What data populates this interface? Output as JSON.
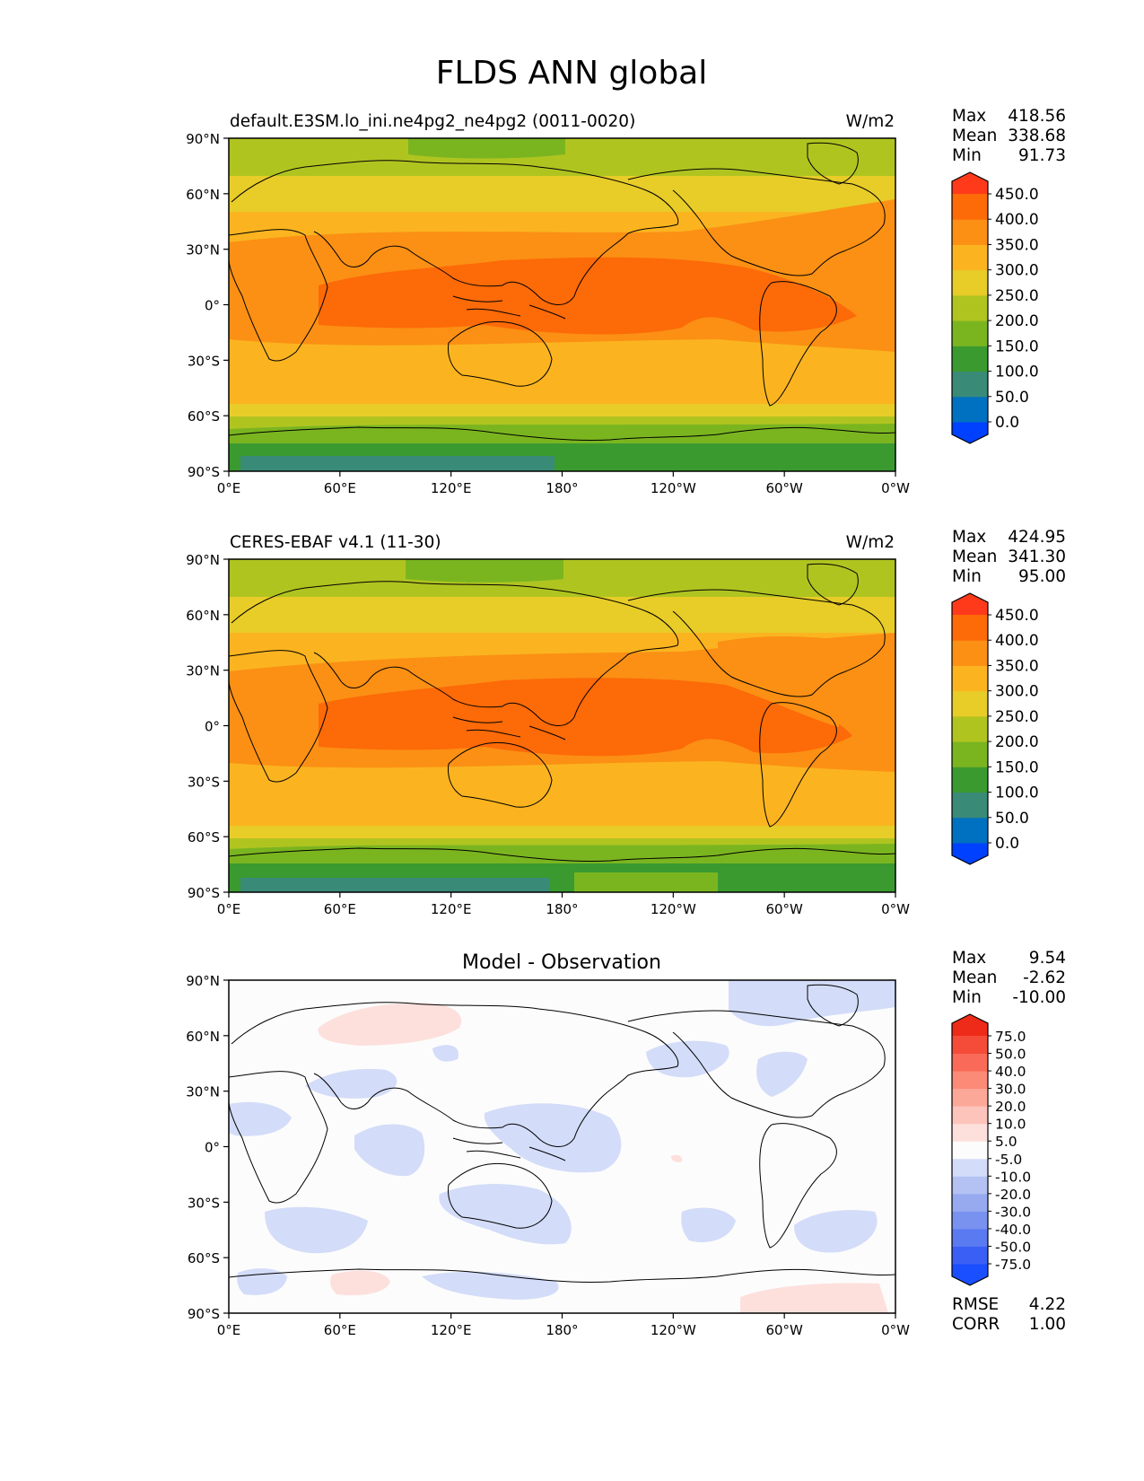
{
  "figure": {
    "title": "FLDS ANN global"
  },
  "colormaps": {
    "abs": [
      "#0040ff",
      "#0070c0",
      "#3a8a78",
      "#3a9a30",
      "#7ab520",
      "#b0c420",
      "#e8cc28",
      "#fbb420",
      "#fb9014",
      "#fd6a08",
      "#ff3a1a"
    ],
    "diff": [
      "#1a4fff",
      "#3a5ff5",
      "#5a7af2",
      "#7a92ef",
      "#97aaf0",
      "#b3c2f3",
      "#d3dcf8",
      "#fcfcfc",
      "#fde0dc",
      "#fdc4bc",
      "#fca898",
      "#fb8a76",
      "#f96b58",
      "#f54c3a",
      "#ee2a18"
    ]
  },
  "panels": [
    {
      "title_left": "default.E3SM.lo_ini.ne4pg2_ne4pg2 (0011-0020)",
      "title_center": "",
      "units": "W/m2",
      "stats": {
        "Max": "418.56",
        "Mean": "338.68",
        "Min": "91.73"
      },
      "colorbar": {
        "cmap": "abs",
        "labels": [
          "450.0",
          "400.0",
          "350.0",
          "300.0",
          "250.0",
          "200.0",
          "150.0",
          "100.0",
          "50.0",
          "0.0"
        ]
      }
    },
    {
      "title_left": "CERES-EBAF v4.1 (11-30)",
      "title_center": "",
      "units": "W/m2",
      "stats": {
        "Max": "424.95",
        "Mean": "341.30",
        "Min": "95.00"
      },
      "colorbar": {
        "cmap": "abs",
        "labels": [
          "450.0",
          "400.0",
          "350.0",
          "300.0",
          "250.0",
          "200.0",
          "150.0",
          "100.0",
          "50.0",
          "0.0"
        ]
      }
    },
    {
      "title_left": "",
      "title_center": "Model - Observation",
      "units": "",
      "stats": {
        "Max": "9.54",
        "Mean": "-2.62",
        "Min": "-10.00"
      },
      "colorbar": {
        "cmap": "diff",
        "labels": [
          "75.0",
          "50.0",
          "40.0",
          "30.0",
          "20.0",
          "10.0",
          "5.0",
          "-5.0",
          "-10.0",
          "-20.0",
          "-30.0",
          "-40.0",
          "-50.0",
          "-75.0"
        ]
      },
      "extra_stats": {
        "RMSE": "4.22",
        "CORR": "1.00"
      }
    }
  ],
  "axes": {
    "lat_ticks": [
      "90°N",
      "60°N",
      "30°N",
      "0°",
      "30°S",
      "60°S",
      "90°S"
    ],
    "lon_ticks": [
      "0°E",
      "60°E",
      "120°E",
      "180°",
      "120°W",
      "60°W",
      "0°W"
    ]
  },
  "chart_data": [
    {
      "type": "heatmap",
      "title": "default.E3SM.lo_ini.ne4pg2_ne4pg2 (0011-0020)",
      "units": "W/m2",
      "x_range": [
        0,
        360
      ],
      "y_range": [
        -90,
        90
      ],
      "contour_levels": [
        0,
        50,
        100,
        150,
        200,
        250,
        300,
        350,
        400,
        450
      ],
      "zonal_band_values_north_to_south": [
        215,
        265,
        310,
        330,
        355,
        395,
        355,
        330,
        300,
        250,
        190,
        130
      ],
      "stats": {
        "max": 418.56,
        "mean": 338.68,
        "min": 91.73
      }
    },
    {
      "type": "heatmap",
      "title": "CERES-EBAF v4.1 (11-30)",
      "units": "W/m2",
      "x_range": [
        0,
        360
      ],
      "y_range": [
        -90,
        90
      ],
      "contour_levels": [
        0,
        50,
        100,
        150,
        200,
        250,
        300,
        350,
        400,
        450
      ],
      "zonal_band_values_north_to_south": [
        210,
        265,
        310,
        335,
        360,
        400,
        360,
        335,
        305,
        255,
        190,
        130
      ],
      "stats": {
        "max": 424.95,
        "mean": 341.3,
        "min": 95.0
      }
    },
    {
      "type": "heatmap",
      "title": "Model - Observation",
      "x_range": [
        0,
        360
      ],
      "y_range": [
        -90,
        90
      ],
      "contour_levels": [
        -75,
        -50,
        -40,
        -30,
        -20,
        -10,
        -5,
        5,
        10,
        20,
        30,
        40,
        50,
        75
      ],
      "stats": {
        "max": 9.54,
        "mean": -2.62,
        "min": -10.0,
        "rmse": 4.22,
        "corr": 1.0
      }
    }
  ]
}
